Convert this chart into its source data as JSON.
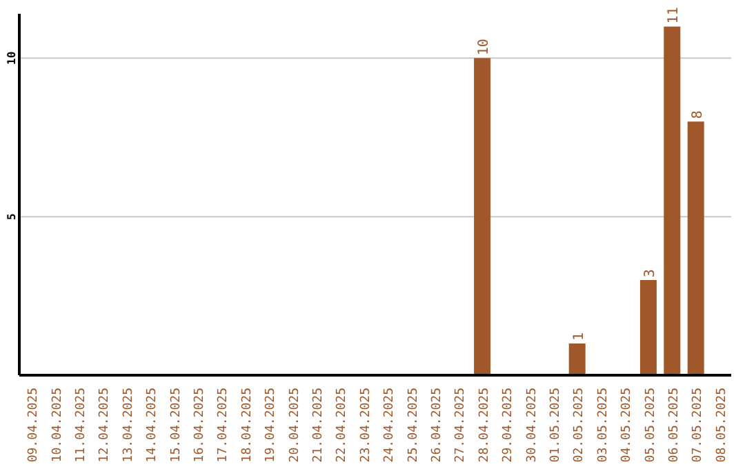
{
  "chart_data": {
    "type": "bar",
    "categories": [
      "09.04.2025",
      "10.04.2025",
      "11.04.2025",
      "12.04.2025",
      "13.04.2025",
      "14.04.2025",
      "15.04.2025",
      "16.04.2025",
      "17.04.2025",
      "18.04.2025",
      "19.04.2025",
      "20.04.2025",
      "21.04.2025",
      "22.04.2025",
      "23.04.2025",
      "24.04.2025",
      "25.04.2025",
      "26.04.2025",
      "27.04.2025",
      "28.04.2025",
      "29.04.2025",
      "30.04.2025",
      "01.05.2025",
      "02.05.2025",
      "03.05.2025",
      "04.05.2025",
      "05.05.2025",
      "06.05.2025",
      "07.05.2025",
      "08.05.2025"
    ],
    "values": [
      null,
      null,
      null,
      null,
      null,
      null,
      null,
      null,
      null,
      null,
      null,
      null,
      null,
      null,
      null,
      null,
      null,
      null,
      null,
      10,
      null,
      null,
      null,
      1,
      null,
      null,
      3,
      11,
      8,
      null
    ],
    "color": "#a0572a",
    "ylim": [
      0,
      11.4
    ],
    "yticks": [
      5,
      10
    ],
    "grid": "y",
    "data_labels": true
  }
}
